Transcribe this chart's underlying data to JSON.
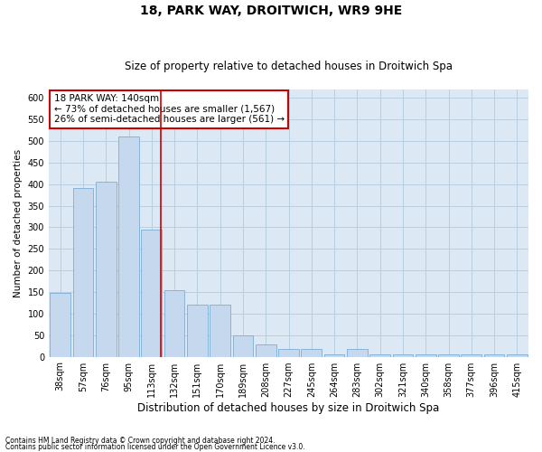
{
  "title_line1": "18, PARK WAY, DROITWICH, WR9 9HE",
  "title_line2": "Size of property relative to detached houses in Droitwich Spa",
  "xlabel": "Distribution of detached houses by size in Droitwich Spa",
  "ylabel": "Number of detached properties",
  "footnote_line1": "Contains HM Land Registry data © Crown copyright and database right 2024.",
  "footnote_line2": "Contains public sector information licensed under the Open Government Licence v3.0.",
  "annotation_line1": "18 PARK WAY: 140sqm",
  "annotation_line2": "← 73% of detached houses are smaller (1,567)",
  "annotation_line3": "26% of semi-detached houses are larger (561) →",
  "bar_color": "#c5d8ed",
  "bar_edge_color": "#7badd4",
  "red_line_color": "#cc0000",
  "annotation_box_edgecolor": "#cc0000",
  "background_color": "#dce9f5",
  "grid_color": "#b8cfe0",
  "categories": [
    "38sqm",
    "57sqm",
    "76sqm",
    "95sqm",
    "113sqm",
    "132sqm",
    "151sqm",
    "170sqm",
    "189sqm",
    "208sqm",
    "227sqm",
    "245sqm",
    "264sqm",
    "283sqm",
    "302sqm",
    "321sqm",
    "340sqm",
    "358sqm",
    "377sqm",
    "396sqm",
    "415sqm"
  ],
  "values": [
    147,
    390,
    405,
    510,
    295,
    155,
    120,
    120,
    50,
    28,
    18,
    18,
    5,
    18,
    5,
    5,
    5,
    5,
    5,
    5,
    5
  ],
  "ylim": [
    0,
    620
  ],
  "yticks": [
    0,
    50,
    100,
    150,
    200,
    250,
    300,
    350,
    400,
    450,
    500,
    550,
    600
  ],
  "red_line_x": 4.42,
  "title_fontsize": 10,
  "subtitle_fontsize": 8.5,
  "xlabel_fontsize": 8.5,
  "ylabel_fontsize": 7.5,
  "tick_fontsize": 7,
  "annotation_fontsize": 7.5,
  "footnote_fontsize": 5.5
}
